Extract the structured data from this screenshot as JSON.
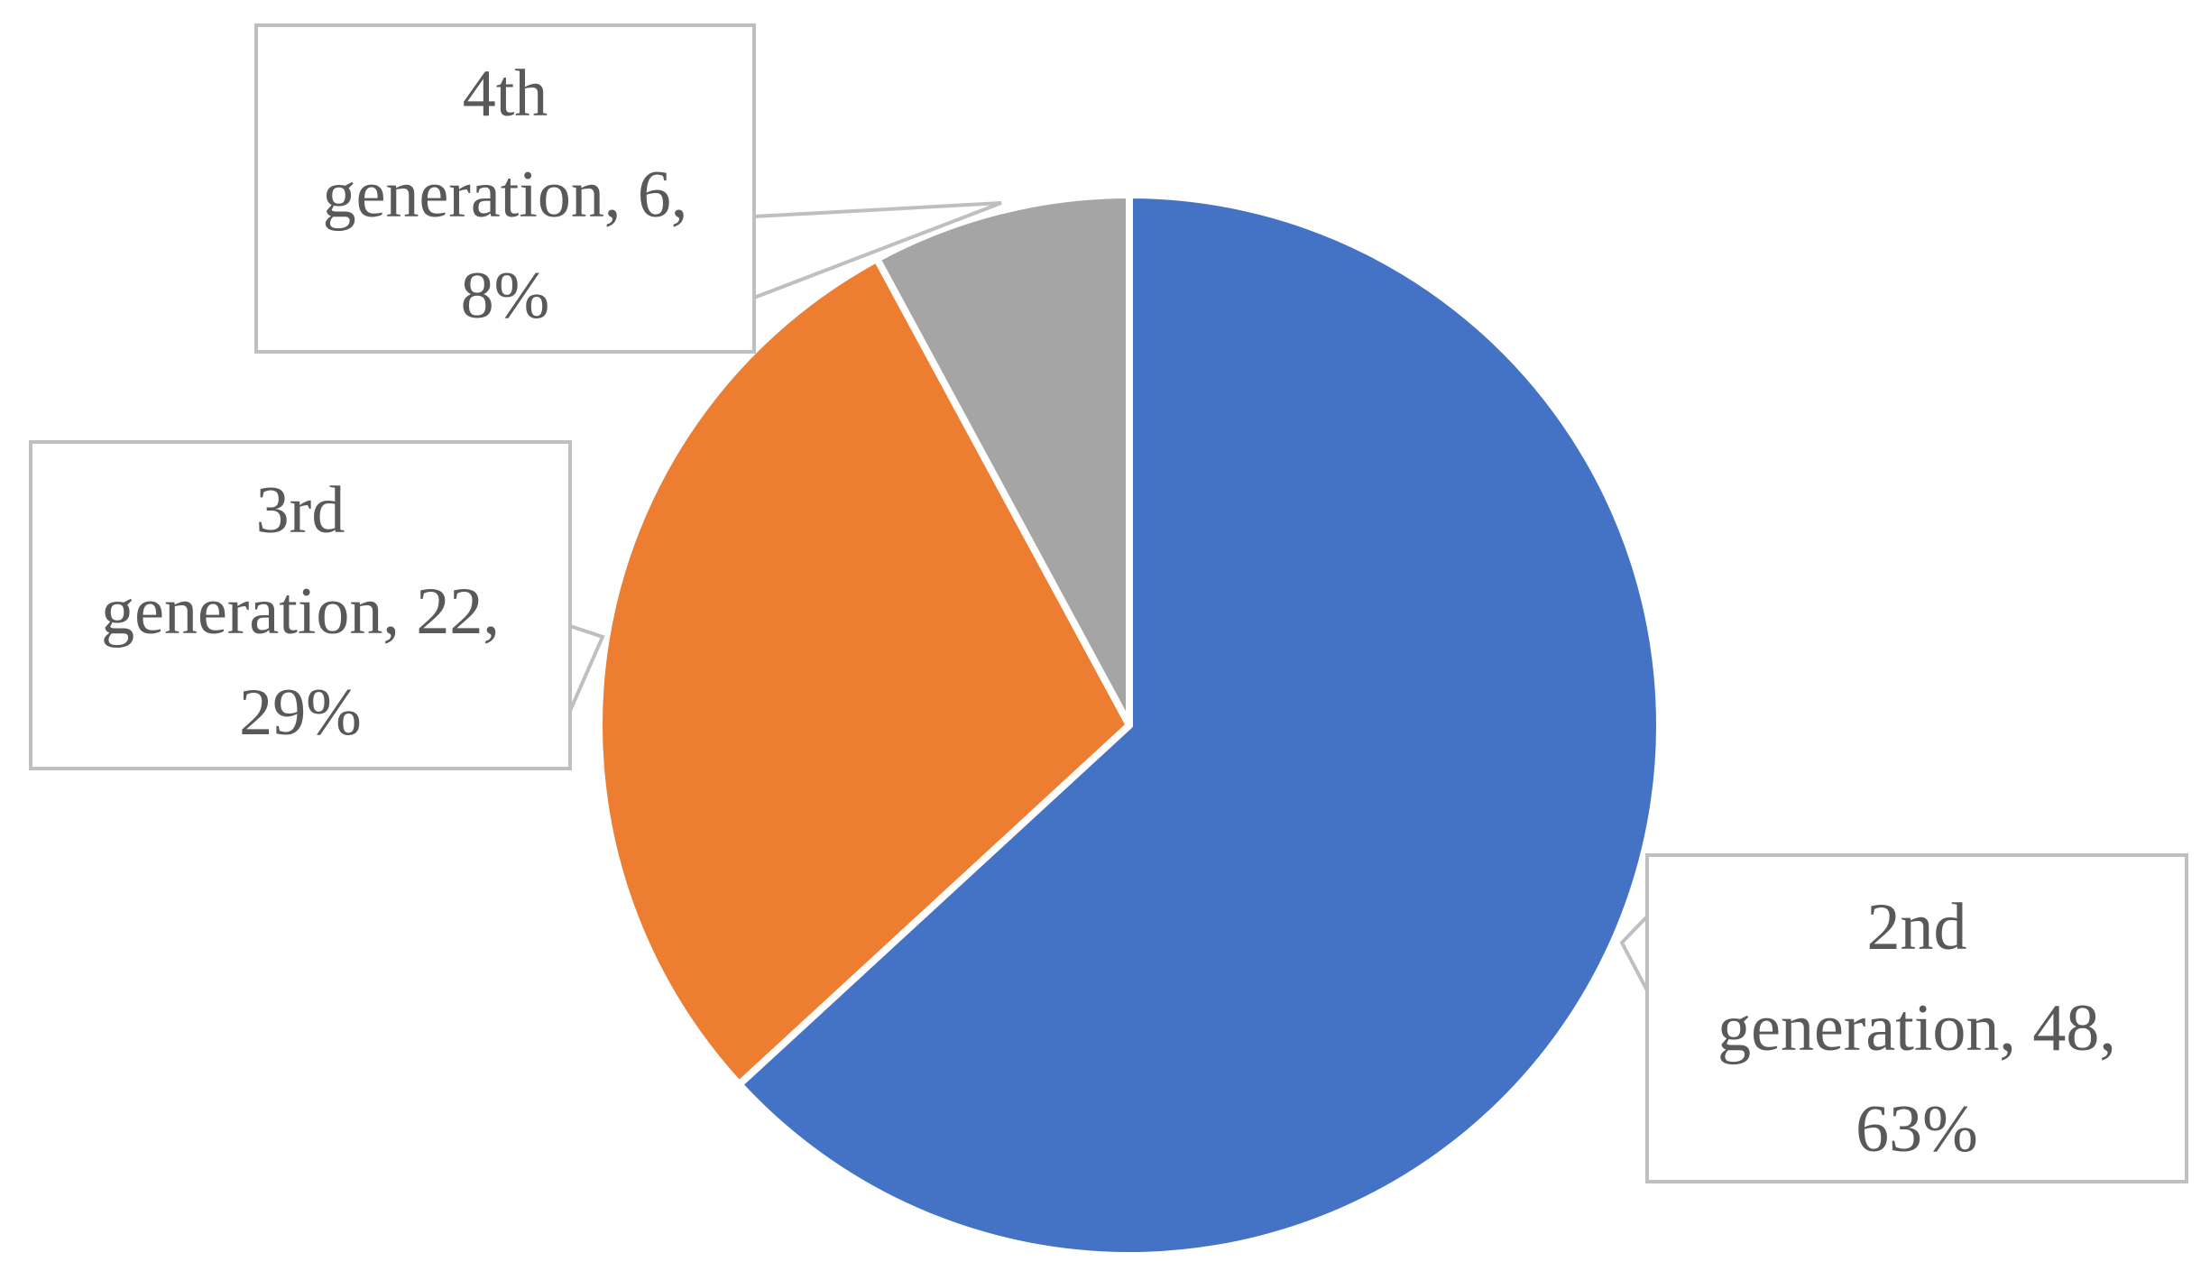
{
  "chart_data": {
    "type": "pie",
    "slices": [
      {
        "label": "2nd generation",
        "value": 48,
        "percent": "63%",
        "color": "#4472C4"
      },
      {
        "label": "3rd generation",
        "value": 22,
        "percent": "29%",
        "color": "#ED7D31"
      },
      {
        "label": "4th generation",
        "value": 6,
        "percent": "8%",
        "color": "#A5A5A5"
      }
    ],
    "data_labels": [
      {
        "line1": "2nd",
        "line2": "generation, 48,",
        "line3": "63%"
      },
      {
        "line1": "3rd",
        "line2": "generation, 22,",
        "line3": "29%"
      },
      {
        "line1": "4th",
        "line2": "generation, 6,",
        "line3": "8%"
      }
    ],
    "start_angle_deg": 0,
    "direction": "clockwise",
    "legend": "none"
  }
}
